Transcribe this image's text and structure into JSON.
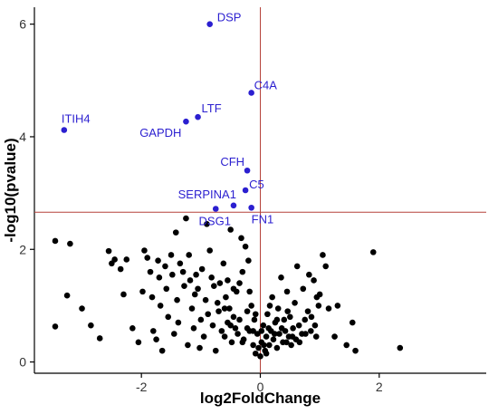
{
  "chart_data": {
    "type": "scatter",
    "title": "",
    "xlabel": "log2FoldChange",
    "ylabel": "-log10(pvalue)",
    "xlim": [
      -3.8,
      3.8
    ],
    "ylim": [
      -0.2,
      6.3
    ],
    "x_ticks": [
      -2,
      0,
      2
    ],
    "y_ticks": [
      0,
      2,
      4,
      6
    ],
    "grid": false,
    "colors": {
      "significant": "#2b1fd0",
      "other": "#000000",
      "threshold": "#b5423a"
    },
    "thresholds": {
      "log2FoldChange": 0,
      "neg_log10_pvalue": 2.66
    },
    "series": [
      {
        "color": "#2b1fd0",
        "points": [
          {
            "x": -0.85,
            "y": 6.0,
            "label": "DSP"
          },
          {
            "x": -0.15,
            "y": 4.78,
            "label": "C4A"
          },
          {
            "x": -1.05,
            "y": 4.35,
            "label": "LTF"
          },
          {
            "x": -1.25,
            "y": 4.27,
            "label": "GAPDH"
          },
          {
            "x": -3.3,
            "y": 4.12,
            "label": "ITIH4"
          },
          {
            "x": -0.22,
            "y": 3.4,
            "label": "CFH"
          },
          {
            "x": -0.25,
            "y": 3.05,
            "label": "C5"
          },
          {
            "x": -0.45,
            "y": 2.78,
            "label": "SERPINA1"
          },
          {
            "x": -0.15,
            "y": 2.74,
            "label": "FN1"
          },
          {
            "x": -0.75,
            "y": 2.72,
            "label": "DSG1"
          }
        ]
      },
      {
        "color": "#000000",
        "points": [
          [
            -3.45,
            2.15
          ],
          [
            -3.2,
            2.1
          ],
          [
            -3.25,
            1.18
          ],
          [
            -3.0,
            0.95
          ],
          [
            -3.45,
            0.63
          ],
          [
            -2.85,
            0.65
          ],
          [
            -2.7,
            0.42
          ],
          [
            -2.55,
            1.97
          ],
          [
            -2.5,
            1.75
          ],
          [
            -2.45,
            1.82
          ],
          [
            -2.35,
            1.65
          ],
          [
            -2.3,
            1.2
          ],
          [
            -2.25,
            1.82
          ],
          [
            -2.15,
            0.6
          ],
          [
            -2.05,
            0.35
          ],
          [
            -1.98,
            1.25
          ],
          [
            -1.95,
            1.98
          ],
          [
            -1.9,
            1.85
          ],
          [
            -1.85,
            1.6
          ],
          [
            -1.82,
            1.15
          ],
          [
            -1.8,
            0.55
          ],
          [
            -1.75,
            0.4
          ],
          [
            -1.72,
            1.8
          ],
          [
            -1.7,
            1.5
          ],
          [
            -1.68,
            1.0
          ],
          [
            -1.65,
            0.2
          ],
          [
            -1.6,
            1.7
          ],
          [
            -1.58,
            1.3
          ],
          [
            -1.55,
            0.8
          ],
          [
            -1.5,
            1.9
          ],
          [
            -1.48,
            1.55
          ],
          [
            -1.45,
            0.5
          ],
          [
            -1.42,
            2.3
          ],
          [
            -1.4,
            1.1
          ],
          [
            -1.38,
            0.7
          ],
          [
            -1.35,
            1.75
          ],
          [
            -1.3,
            1.6
          ],
          [
            -1.28,
            1.35
          ],
          [
            -1.25,
            2.55
          ],
          [
            -1.22,
            0.3
          ],
          [
            -1.2,
            1.9
          ],
          [
            -1.18,
            1.45
          ],
          [
            -1.15,
            0.95
          ],
          [
            -1.12,
            0.6
          ],
          [
            -1.1,
            1.2
          ],
          [
            -1.08,
            1.55
          ],
          [
            -1.05,
            1.3
          ],
          [
            -1.02,
            0.25
          ],
          [
            -1.0,
            0.75
          ],
          [
            -0.98,
            1.65
          ],
          [
            -0.95,
            0.45
          ],
          [
            -0.92,
            1.1
          ],
          [
            -0.9,
            2.45
          ],
          [
            -0.88,
            0.85
          ],
          [
            -0.85,
            1.98
          ],
          [
            -0.82,
            1.5
          ],
          [
            -0.8,
            0.65
          ],
          [
            -0.78,
            1.35
          ],
          [
            -0.75,
            0.2
          ],
          [
            -0.72,
            1.05
          ],
          [
            -0.7,
            0.9
          ],
          [
            -0.68,
            1.4
          ],
          [
            -0.65,
            0.55
          ],
          [
            -0.62,
            1.75
          ],
          [
            -0.6,
            0.45
          ],
          [
            -0.58,
            1.15
          ],
          [
            -0.55,
            0.7
          ],
          [
            -0.52,
            0.95
          ],
          [
            -0.5,
            2.35
          ],
          [
            -0.48,
            0.35
          ],
          [
            -0.45,
            0.8
          ],
          [
            -0.42,
            0.6
          ],
          [
            -0.4,
            1.25
          ],
          [
            -0.38,
            0.5
          ],
          [
            -0.35,
            0.75
          ],
          [
            -0.32,
            2.2
          ],
          [
            -0.3,
            1.6
          ],
          [
            -0.28,
            0.4
          ],
          [
            -0.25,
            2.05
          ],
          [
            -0.22,
            0.9
          ],
          [
            -0.2,
            1.8
          ],
          [
            -0.18,
            0.55
          ],
          [
            -0.15,
            1.0
          ],
          [
            -0.12,
            0.3
          ],
          [
            -0.1,
            0.75
          ],
          [
            -0.08,
            0.15
          ],
          [
            -0.05,
            0.5
          ],
          [
            -0.03,
            0.25
          ],
          [
            0.0,
            0.1
          ],
          [
            0.02,
            0.35
          ],
          [
            0.05,
            0.65
          ],
          [
            0.08,
            0.2
          ],
          [
            0.1,
            0.45
          ],
          [
            0.12,
            0.85
          ],
          [
            0.15,
            0.3
          ],
          [
            0.18,
            0.55
          ],
          [
            0.2,
            1.15
          ],
          [
            0.22,
            0.4
          ],
          [
            0.25,
            0.7
          ],
          [
            0.28,
            0.25
          ],
          [
            0.3,
            0.95
          ],
          [
            0.32,
            0.5
          ],
          [
            0.35,
            1.5
          ],
          [
            0.38,
            0.35
          ],
          [
            0.4,
            0.75
          ],
          [
            0.42,
            0.55
          ],
          [
            0.45,
            1.25
          ],
          [
            0.48,
            0.45
          ],
          [
            0.5,
            0.8
          ],
          [
            0.52,
            0.3
          ],
          [
            0.55,
            0.6
          ],
          [
            0.58,
            1.05
          ],
          [
            0.6,
            0.4
          ],
          [
            0.62,
            1.7
          ],
          [
            0.65,
            0.65
          ],
          [
            0.7,
            0.5
          ],
          [
            0.72,
            1.3
          ],
          [
            0.75,
            0.75
          ],
          [
            0.8,
            0.9
          ],
          [
            0.82,
            1.55
          ],
          [
            0.85,
            0.55
          ],
          [
            0.9,
            1.45
          ],
          [
            0.92,
            0.65
          ],
          [
            0.95,
            1.15
          ],
          [
            0.98,
            1.0
          ],
          [
            1.0,
            1.2
          ],
          [
            1.05,
            1.9
          ],
          [
            1.1,
            1.7
          ],
          [
            1.15,
            0.95
          ],
          [
            1.25,
            0.45
          ],
          [
            1.3,
            1.0
          ],
          [
            1.45,
            0.3
          ],
          [
            1.55,
            0.7
          ],
          [
            1.6,
            0.2
          ],
          [
            1.9,
            1.95
          ],
          [
            2.35,
            0.25
          ],
          [
            -0.6,
            0.95
          ],
          [
            -0.55,
            1.45
          ],
          [
            -0.5,
            0.65
          ],
          [
            -0.45,
            1.3
          ],
          [
            -0.35,
            1.4
          ],
          [
            -0.3,
            0.35
          ],
          [
            -0.22,
            0.6
          ],
          [
            -0.18,
            1.25
          ],
          [
            -0.12,
            0.55
          ],
          [
            -0.08,
            0.85
          ],
          [
            0.02,
            0.55
          ],
          [
            0.06,
            0.3
          ],
          [
            0.1,
            0.15
          ],
          [
            0.14,
            0.6
          ],
          [
            0.16,
            1.0
          ],
          [
            0.24,
            0.5
          ],
          [
            0.28,
            0.75
          ],
          [
            0.36,
            0.6
          ],
          [
            0.44,
            0.35
          ],
          [
            0.46,
            0.9
          ],
          [
            0.54,
            0.45
          ],
          [
            0.66,
            0.35
          ],
          [
            0.76,
            0.5
          ],
          [
            0.86,
            0.8
          ],
          [
            0.94,
            0.45
          ]
        ]
      }
    ]
  }
}
